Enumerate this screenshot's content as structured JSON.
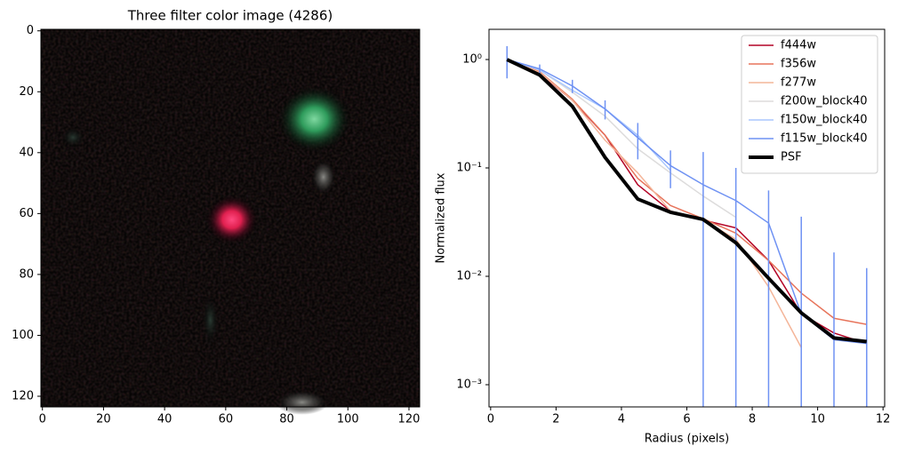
{
  "chart_data": [
    {
      "type": "image",
      "title": "Three filter color image (4286)",
      "xlim": [
        -0.5,
        123.5
      ],
      "ylim": [
        123.5,
        -0.5
      ],
      "xticks": [
        0,
        20,
        40,
        60,
        80,
        100,
        120
      ],
      "yticks": [
        0,
        20,
        40,
        60,
        80,
        100,
        120
      ]
    },
    {
      "type": "line",
      "xlabel": "Radius (pixels)",
      "ylabel": "Normalized flux",
      "yscale": "log",
      "legend": "upper right",
      "x": [
        0.5,
        1.5,
        2.5,
        3.5,
        4.5,
        5.5,
        6.5,
        7.5,
        8.5,
        9.5,
        10.5,
        11.5
      ],
      "xlim": [
        -0.05,
        12.05
      ],
      "xticks": [
        0,
        2,
        4,
        6,
        8,
        10,
        12
      ],
      "ylim": [
        0.000624,
        1.9
      ],
      "yticks": [
        {
          "value": 0.001,
          "label": "10⁻³"
        },
        {
          "value": 0.01,
          "label": "10⁻²"
        },
        {
          "value": 0.1,
          "label": "10⁻¹"
        },
        {
          "value": 1,
          "label": "10⁰"
        }
      ],
      "series": [
        {
          "name": "f444w",
          "color": "#b40426",
          "values": [
            1.0,
            0.75,
            0.42,
            0.2,
            0.07,
            0.04,
            0.033,
            0.028,
            0.014,
            0.0045,
            0.003,
            0.0024
          ]
        },
        {
          "name": "f356w",
          "color": "#e7745b",
          "values": [
            1.0,
            0.77,
            0.43,
            0.2,
            0.08,
            0.045,
            0.034,
            0.025,
            0.014,
            0.007,
            0.0041,
            0.0036
          ]
        },
        {
          "name": "f277w",
          "color": "#f4b599",
          "values": [
            1.0,
            0.76,
            0.42,
            0.18,
            0.09,
            0.04,
            0.033,
            0.022,
            0.008,
            0.0022,
            null,
            null
          ]
        },
        {
          "name": "f200w_block40",
          "color": "#dddcdc",
          "values": [
            1.0,
            0.8,
            0.5,
            0.3,
            0.15,
            0.09,
            0.055,
            0.035,
            null,
            null,
            null,
            null
          ]
        },
        {
          "name": "f150w_block40",
          "color": "#aac7fd",
          "values": [
            1.0,
            0.8,
            0.52,
            0.35,
            0.2,
            0.095,
            null,
            null,
            null,
            null,
            null,
            null
          ]
        },
        {
          "name": "f115w_block40",
          "color": "#6f92f3",
          "values": [
            1.0,
            0.82,
            0.57,
            0.35,
            0.19,
            0.105,
            0.07,
            0.05,
            0.031,
            0.0045,
            0.0026,
            0.0024
          ],
          "errors": [
            0.33,
            0.08,
            0.08,
            0.07,
            0.07,
            0.04,
            0.07,
            0.05,
            0.031,
            0.031,
            0.014,
            0.0095
          ]
        },
        {
          "name": "PSF",
          "color": "#000000",
          "values": [
            1.0,
            0.72,
            0.37,
            0.125,
            0.0516,
            0.039,
            0.0335,
            0.0204,
            0.0096,
            0.0046,
            0.0027,
            0.0025
          ]
        }
      ]
    }
  ]
}
